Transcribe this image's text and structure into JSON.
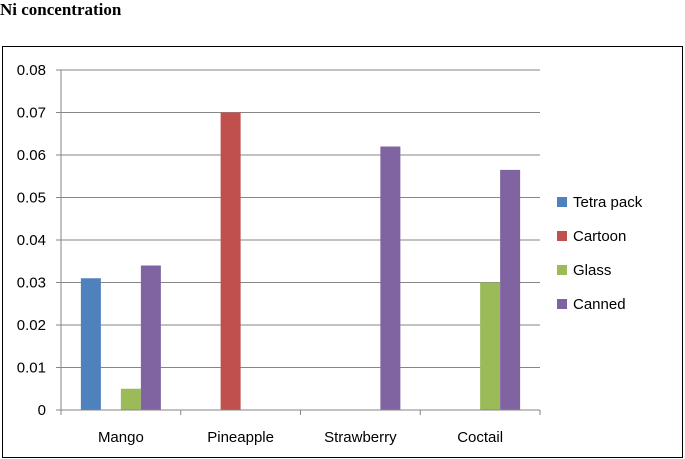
{
  "title": "Ni concentration",
  "chart_data": {
    "type": "bar",
    "title": "",
    "xlabel": "",
    "ylabel": "",
    "categories": [
      "Mango",
      "Pineapple",
      "Strawberry",
      "Coctail"
    ],
    "series": [
      {
        "name": "Tetra pack",
        "color": "#4f81bd",
        "values": [
          0.031,
          0,
          0,
          0
        ]
      },
      {
        "name": "Cartoon",
        "color": "#c0504d",
        "values": [
          0,
          0.07,
          0,
          0
        ]
      },
      {
        "name": "Glass",
        "color": "#9bbb59",
        "values": [
          0.005,
          0,
          0,
          0.03
        ]
      },
      {
        "name": "Canned",
        "color": "#8064a2",
        "values": [
          0.034,
          0,
          0.062,
          0.0565
        ]
      }
    ],
    "ylim": [
      0,
      0.08
    ],
    "yticks": [
      "0",
      "0.01",
      "0.02",
      "0.03",
      "0.04",
      "0.05",
      "0.06",
      "0.07",
      "0.08"
    ],
    "grid": true,
    "legend_position": "right"
  }
}
